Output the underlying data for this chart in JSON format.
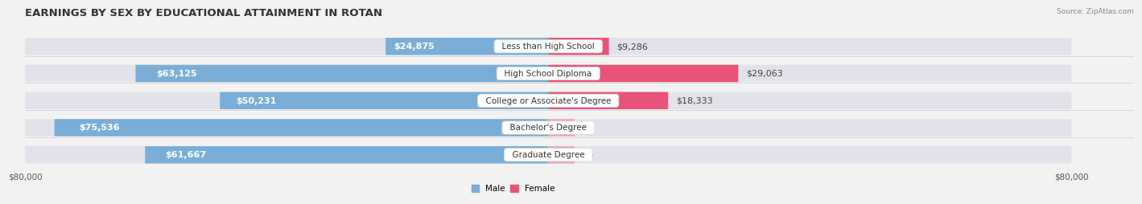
{
  "title": "EARNINGS BY SEX BY EDUCATIONAL ATTAINMENT IN ROTAN",
  "source": "Source: ZipAtlas.com",
  "categories": [
    "Less than High School",
    "High School Diploma",
    "College or Associate's Degree",
    "Bachelor's Degree",
    "Graduate Degree"
  ],
  "male_values": [
    24875,
    63125,
    50231,
    75536,
    61667
  ],
  "female_values": [
    9286,
    29063,
    18333,
    0,
    0
  ],
  "female_display_min": 4000,
  "male_color": "#7aaed6",
  "female_color_strong": "#e8537a",
  "female_color_light": "#f0a0bc",
  "male_label": "Male",
  "female_label": "Female",
  "max_value": 80000,
  "xlabel_left": "$80,000",
  "xlabel_right": "$80,000",
  "background_color": "#f2f2f2",
  "bar_bg_color": "#e2e2ea",
  "title_fontsize": 9.5,
  "label_fontsize": 8.0,
  "tick_fontsize": 7.5,
  "bar_height": 0.62,
  "row_sep_color": "#cccccc"
}
